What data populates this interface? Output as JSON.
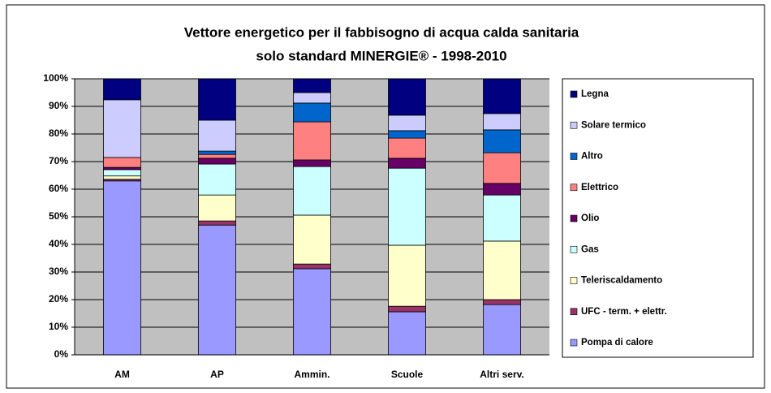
{
  "chart_data": {
    "type": "stacked_bar",
    "title": [
      "Vettore energetico per il fabbisogno di acqua calda sanitaria",
      "solo standard MINERGIE® - 1998-2010"
    ],
    "categories": [
      "AM",
      "AP",
      "Ammin.",
      "Scuole",
      "Altri serv."
    ],
    "series": [
      {
        "name": "Pompa di calore",
        "color": "#9999ff",
        "values": [
          63,
          47,
          31.2,
          15.6,
          18.2
        ]
      },
      {
        "name": "UFC - term. + elettr.",
        "color": "#993366",
        "values": [
          0.6,
          1.5,
          1.7,
          2.0,
          1.8
        ]
      },
      {
        "name": "Teleriscaldamento",
        "color": "#ffffcc",
        "values": [
          1.2,
          9.4,
          17.7,
          22.1,
          21.2
        ]
      },
      {
        "name": "Gas",
        "color": "#ccffff",
        "values": [
          2.3,
          11.2,
          17.6,
          27.9,
          16.7
        ]
      },
      {
        "name": "Olio",
        "color": "#660066",
        "values": [
          0.8,
          2.1,
          2.4,
          3.6,
          4.2
        ]
      },
      {
        "name": "Elettrico",
        "color": "#ff8080",
        "values": [
          3.6,
          1.4,
          13.8,
          7.3,
          11.1
        ]
      },
      {
        "name": "Altro",
        "color": "#0066cc",
        "values": [
          0,
          1.2,
          6.8,
          2.7,
          8.3
        ]
      },
      {
        "name": "Solare termico",
        "color": "#ccccff",
        "values": [
          20.9,
          11.2,
          3.8,
          5.6,
          5.9
        ]
      },
      {
        "name": "Legna",
        "color": "#000080",
        "values": [
          7.6,
          15.0,
          5.0,
          13.2,
          12.6
        ]
      }
    ],
    "ylim": [
      0,
      100
    ],
    "yticks": [
      {
        "value": 0,
        "label": "0%"
      },
      {
        "value": 10,
        "label": "10%"
      },
      {
        "value": 20,
        "label": "20%"
      },
      {
        "value": 30,
        "label": "30%"
      },
      {
        "value": 40,
        "label": "40%"
      },
      {
        "value": 50,
        "label": "50%"
      },
      {
        "value": 60,
        "label": "60%"
      },
      {
        "value": 70,
        "label": "70%"
      },
      {
        "value": 80,
        "label": "80%"
      },
      {
        "value": 90,
        "label": "90%"
      },
      {
        "value": 100,
        "label": "100%"
      }
    ],
    "grid": true,
    "legend": "right"
  }
}
